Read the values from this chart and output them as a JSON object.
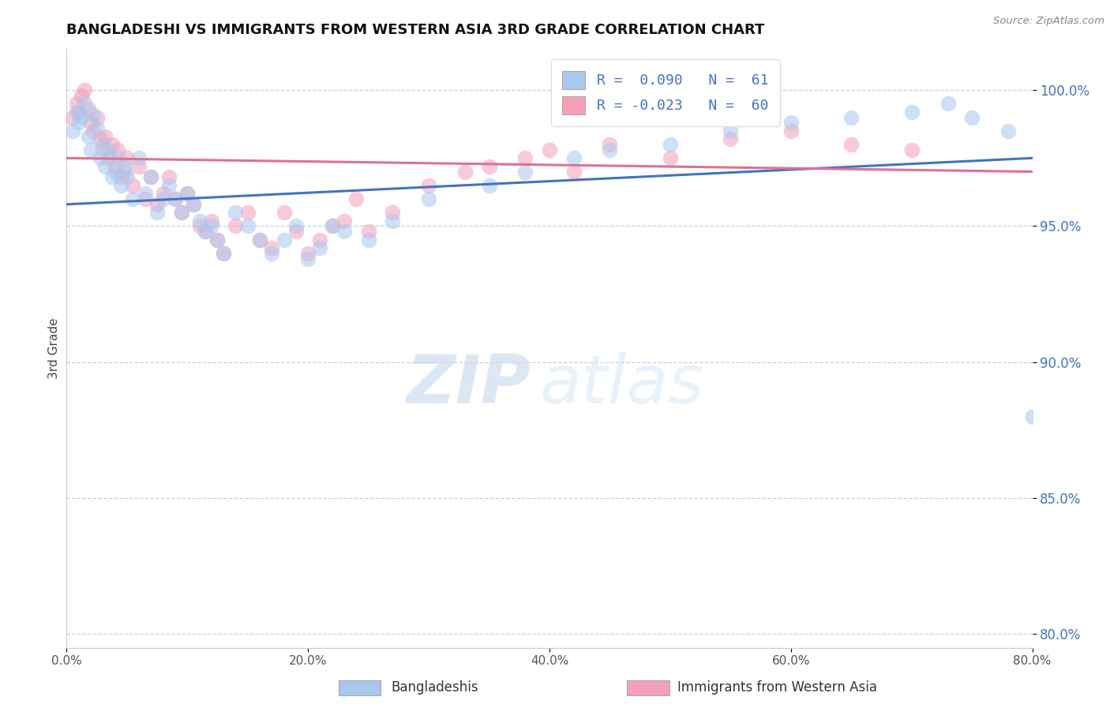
{
  "title": "BANGLADESHI VS IMMIGRANTS FROM WESTERN ASIA 3RD GRADE CORRELATION CHART",
  "source": "Source: ZipAtlas.com",
  "ylabel": "3rd Grade",
  "xlim": [
    0.0,
    80.0
  ],
  "ylim": [
    79.5,
    101.5
  ],
  "yticks": [
    80.0,
    85.0,
    90.0,
    95.0,
    100.0
  ],
  "ytick_labels": [
    "80.0%",
    "85.0%",
    "90.0%",
    "95.0%",
    "100.0%"
  ],
  "xticks": [
    0,
    20,
    40,
    60,
    80
  ],
  "xtick_labels": [
    "0.0%",
    "20.0%",
    "40.0%",
    "60.0%",
    "80.0%"
  ],
  "blue_R": 0.09,
  "blue_N": 61,
  "pink_R": -0.023,
  "pink_N": 60,
  "blue_color": "#a8c8f0",
  "pink_color": "#f4a0b8",
  "blue_trend_color": "#4472c4",
  "pink_trend_color": "#e07090",
  "legend_label_blue": "Bangladeshis",
  "legend_label_pink": "Immigrants from Western Asia",
  "watermark_zip": "ZIP",
  "watermark_atlas": "atlas",
  "background_color": "#ffffff",
  "blue_scatter_x": [
    0.5,
    0.8,
    1.0,
    1.2,
    1.5,
    1.8,
    2.0,
    2.2,
    2.5,
    2.8,
    3.0,
    3.2,
    3.5,
    3.8,
    4.0,
    4.2,
    4.5,
    4.8,
    5.0,
    5.5,
    6.0,
    6.5,
    7.0,
    7.5,
    8.0,
    8.5,
    9.0,
    9.5,
    10.0,
    10.5,
    11.0,
    11.5,
    12.0,
    12.5,
    13.0,
    14.0,
    15.0,
    16.0,
    17.0,
    18.0,
    19.0,
    20.0,
    21.0,
    22.0,
    23.0,
    25.0,
    27.0,
    30.0,
    35.0,
    38.0,
    42.0,
    45.0,
    50.0,
    55.0,
    60.0,
    65.0,
    70.0,
    73.0,
    75.0,
    78.0,
    80.0
  ],
  "blue_scatter_y": [
    98.5,
    99.2,
    98.8,
    99.0,
    99.5,
    98.3,
    97.8,
    99.1,
    98.6,
    97.5,
    98.0,
    97.2,
    97.8,
    96.8,
    97.0,
    97.5,
    96.5,
    97.2,
    96.8,
    96.0,
    97.5,
    96.2,
    96.8,
    95.5,
    96.0,
    96.5,
    96.0,
    95.5,
    96.2,
    95.8,
    95.2,
    94.8,
    95.0,
    94.5,
    94.0,
    95.5,
    95.0,
    94.5,
    94.0,
    94.5,
    95.0,
    93.8,
    94.2,
    95.0,
    94.8,
    94.5,
    95.2,
    96.0,
    96.5,
    97.0,
    97.5,
    97.8,
    98.0,
    98.5,
    98.8,
    99.0,
    99.2,
    99.5,
    99.0,
    98.5,
    88.0
  ],
  "pink_scatter_x": [
    0.5,
    0.8,
    1.0,
    1.2,
    1.5,
    1.8,
    2.0,
    2.2,
    2.5,
    2.8,
    3.0,
    3.2,
    3.5,
    3.8,
    4.0,
    4.2,
    4.5,
    4.8,
    5.0,
    5.5,
    6.0,
    6.5,
    7.0,
    7.5,
    8.0,
    8.5,
    9.0,
    9.5,
    10.0,
    10.5,
    11.0,
    11.5,
    12.0,
    12.5,
    13.0,
    14.0,
    15.0,
    16.0,
    17.0,
    18.0,
    19.0,
    20.0,
    21.0,
    22.0,
    23.0,
    24.0,
    25.0,
    27.0,
    30.0,
    33.0,
    35.0,
    38.0,
    40.0,
    42.0,
    45.0,
    50.0,
    55.0,
    60.0,
    65.0,
    70.0
  ],
  "pink_scatter_y": [
    99.0,
    99.5,
    99.2,
    99.8,
    100.0,
    99.3,
    98.8,
    98.5,
    99.0,
    98.2,
    97.8,
    98.3,
    97.5,
    98.0,
    97.2,
    97.8,
    96.8,
    97.0,
    97.5,
    96.5,
    97.2,
    96.0,
    96.8,
    95.8,
    96.2,
    96.8,
    96.0,
    95.5,
    96.2,
    95.8,
    95.0,
    94.8,
    95.2,
    94.5,
    94.0,
    95.0,
    95.5,
    94.5,
    94.2,
    95.5,
    94.8,
    94.0,
    94.5,
    95.0,
    95.2,
    96.0,
    94.8,
    95.5,
    96.5,
    97.0,
    97.2,
    97.5,
    97.8,
    97.0,
    98.0,
    97.5,
    98.2,
    98.5,
    98.0,
    97.8
  ],
  "blue_line_x0": 0.0,
  "blue_line_y0": 95.8,
  "blue_line_x1": 80.0,
  "blue_line_y1": 97.5,
  "pink_line_x0": 0.0,
  "pink_line_y0": 97.5,
  "pink_line_x1": 80.0,
  "pink_line_y1": 97.0
}
